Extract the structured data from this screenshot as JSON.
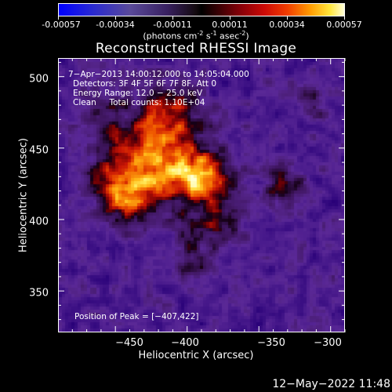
{
  "colorbar": {
    "ticks": [
      "-0.00057",
      "-0.00034",
      "-0.00011",
      "0.00011",
      "0.00034",
      "0.00057"
    ],
    "units_prefix": "(photons cm",
    "units_exp1": "-2",
    "units_mid1": " s",
    "units_exp2": "-1",
    "units_mid2": " asec",
    "units_exp3": "-2",
    "units_suffix": ")"
  },
  "chart_data": {
    "type": "heatmap",
    "title": "Reconstructed RHESSI Image",
    "xlabel": "Heliocentric X (arcsec)",
    "ylabel": "Heliocentric Y (arcsec)",
    "xlim": [
      -490,
      -290
    ],
    "ylim": [
      321,
      513
    ],
    "xticks": [
      -450,
      -400,
      -350,
      -300
    ],
    "yticks": [
      350,
      400,
      450,
      500
    ],
    "xtick_labels": [
      "−450",
      "−400",
      "−350",
      "−300"
    ],
    "ytick_labels": [
      "350",
      "400",
      "450",
      "500"
    ],
    "colorbar_range": [
      -0.00057,
      0.00057
    ],
    "peak_position": [
      -407,
      422
    ],
    "colors": {
      "low": "#0000ff",
      "mid": "#000000",
      "high": "#ffffd8"
    }
  },
  "annotations": {
    "time": "7−Apr−2013 14:00:12.000 to 14:05:04.000",
    "detectors": "Detectors: 3F 4F 5F 6F 7F 8F, Att 0",
    "energy": "Energy Range: 12.0 − 25.0 keV",
    "clean": "Clean     Total counts: 1.10E+04",
    "peak": "Position of Peak = [−407,422]"
  },
  "footer": {
    "timestamp": "12−May−2022 11:48"
  }
}
